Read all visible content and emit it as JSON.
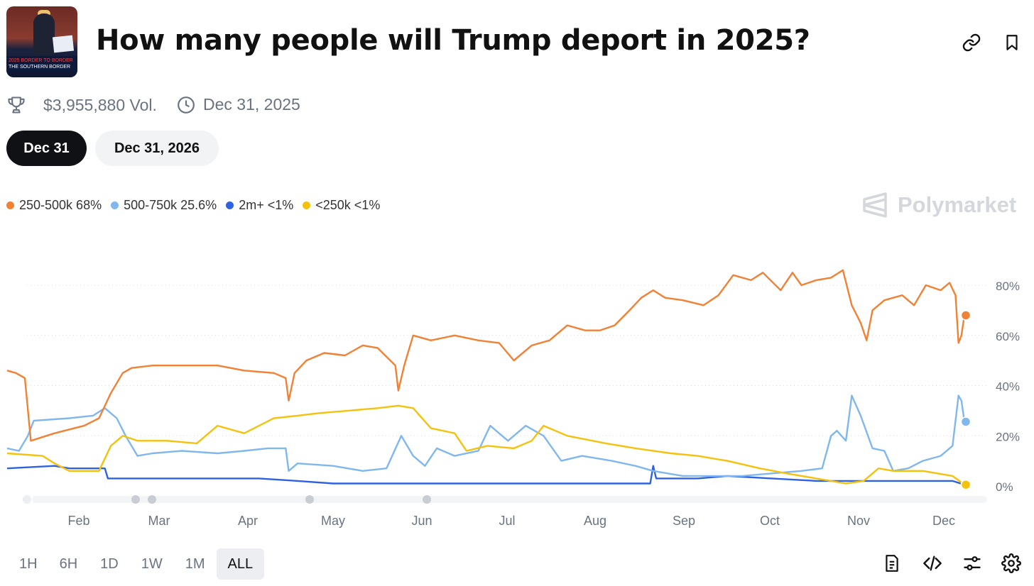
{
  "header": {
    "title": "How many people will Trump deport in 2025?",
    "thumbnail_caption_top": "2025 BORDER TO BORDER",
    "thumbnail_caption_bottom": "THE SOUTHERN BORDER"
  },
  "meta": {
    "volume": "$3,955,880 Vol.",
    "end_date": "Dec 31, 2025",
    "trophy_icon": "trophy-icon",
    "clock_icon": "clock-icon"
  },
  "date_tabs": [
    {
      "label": "Dec 31",
      "active": true
    },
    {
      "label": "Dec 31, 2026",
      "active": false
    }
  ],
  "legend": [
    {
      "label": "250-500k 68%",
      "color": "#f08135"
    },
    {
      "label": "500-750k 25.6%",
      "color": "#7fb7ee"
    },
    {
      "label": "2m+ <1%",
      "color": "#2f62e0"
    },
    {
      "label": "<250k <1%",
      "color": "#f4c20d"
    }
  ],
  "brand": "Polymarket",
  "time_ranges": [
    {
      "label": "1H",
      "active": false
    },
    {
      "label": "6H",
      "active": false
    },
    {
      "label": "1D",
      "active": false
    },
    {
      "label": "1W",
      "active": false
    },
    {
      "label": "1M",
      "active": false
    },
    {
      "label": "ALL",
      "active": true
    }
  ],
  "chart_data": {
    "type": "line",
    "x_labels": [
      "Feb",
      "Mar",
      "Apr",
      "May",
      "Jun",
      "Jul",
      "Aug",
      "Sep",
      "Oct",
      "Nov",
      "Dec"
    ],
    "y_ticks": [
      "0%",
      "20%",
      "40%",
      "60%",
      "80%"
    ],
    "ylim": [
      0,
      100
    ],
    "grid": true,
    "series": [
      {
        "name": "250-500k",
        "color": "#f08135",
        "current": 68,
        "points": [
          [
            "2025-01-20",
            46
          ],
          [
            "2025-01-23",
            45
          ],
          [
            "2025-01-26",
            43
          ],
          [
            "2025-01-28",
            18
          ],
          [
            "2025-02-05",
            21
          ],
          [
            "2025-02-15",
            24
          ],
          [
            "2025-02-20",
            27
          ],
          [
            "2025-02-24",
            37
          ],
          [
            "2025-02-28",
            45
          ],
          [
            "2025-03-03",
            47
          ],
          [
            "2025-03-10",
            48
          ],
          [
            "2025-03-20",
            48
          ],
          [
            "2025-04-01",
            48
          ],
          [
            "2025-04-10",
            46
          ],
          [
            "2025-04-20",
            45
          ],
          [
            "2025-04-24",
            43
          ],
          [
            "2025-04-25",
            34
          ],
          [
            "2025-04-27",
            45
          ],
          [
            "2025-05-01",
            50
          ],
          [
            "2025-05-07",
            53
          ],
          [
            "2025-05-14",
            52
          ],
          [
            "2025-05-20",
            56
          ],
          [
            "2025-05-25",
            55
          ],
          [
            "2025-05-31",
            48
          ],
          [
            "2025-06-01",
            38
          ],
          [
            "2025-06-03",
            48
          ],
          [
            "2025-06-06",
            60
          ],
          [
            "2025-06-12",
            58
          ],
          [
            "2025-06-20",
            60
          ],
          [
            "2025-06-28",
            58
          ],
          [
            "2025-07-05",
            57
          ],
          [
            "2025-07-10",
            50
          ],
          [
            "2025-07-16",
            56
          ],
          [
            "2025-07-22",
            58
          ],
          [
            "2025-07-28",
            64
          ],
          [
            "2025-08-03",
            62
          ],
          [
            "2025-08-08",
            62
          ],
          [
            "2025-08-13",
            64
          ],
          [
            "2025-08-18",
            70
          ],
          [
            "2025-08-22",
            75
          ],
          [
            "2025-08-26",
            78
          ],
          [
            "2025-08-30",
            75
          ],
          [
            "2025-09-05",
            74
          ],
          [
            "2025-09-12",
            72
          ],
          [
            "2025-09-17",
            76
          ],
          [
            "2025-09-22",
            84
          ],
          [
            "2025-09-28",
            82
          ],
          [
            "2025-10-02",
            85
          ],
          [
            "2025-10-08",
            78
          ],
          [
            "2025-10-12",
            85
          ],
          [
            "2025-10-15",
            80
          ],
          [
            "2025-10-20",
            82
          ],
          [
            "2025-10-25",
            83
          ],
          [
            "2025-10-29",
            86
          ],
          [
            "2025-11-01",
            72
          ],
          [
            "2025-11-04",
            65
          ],
          [
            "2025-11-06",
            58
          ],
          [
            "2025-11-08",
            70
          ],
          [
            "2025-11-12",
            74
          ],
          [
            "2025-11-18",
            76
          ],
          [
            "2025-11-22",
            72
          ],
          [
            "2025-11-26",
            80
          ],
          [
            "2025-12-01",
            78
          ],
          [
            "2025-12-04",
            81
          ],
          [
            "2025-12-06",
            76
          ],
          [
            "2025-12-07",
            57
          ],
          [
            "2025-12-08",
            60
          ],
          [
            "2025-12-09",
            68
          ]
        ]
      },
      {
        "name": "500-750k",
        "color": "#7fb7ee",
        "current": 25.6,
        "points": [
          [
            "2025-01-20",
            15
          ],
          [
            "2025-01-24",
            14
          ],
          [
            "2025-01-27",
            20
          ],
          [
            "2025-01-29",
            26
          ],
          [
            "2025-02-10",
            27
          ],
          [
            "2025-02-18",
            28
          ],
          [
            "2025-02-22",
            31
          ],
          [
            "2025-02-26",
            27
          ],
          [
            "2025-03-01",
            20
          ],
          [
            "2025-03-05",
            12
          ],
          [
            "2025-03-10",
            13
          ],
          [
            "2025-03-20",
            14
          ],
          [
            "2025-04-01",
            13
          ],
          [
            "2025-04-10",
            14
          ],
          [
            "2025-04-18",
            15
          ],
          [
            "2025-04-24",
            15
          ],
          [
            "2025-04-25",
            6
          ],
          [
            "2025-04-28",
            9
          ],
          [
            "2025-05-10",
            8
          ],
          [
            "2025-05-20",
            6
          ],
          [
            "2025-05-28",
            7
          ],
          [
            "2025-06-02",
            20
          ],
          [
            "2025-06-06",
            12
          ],
          [
            "2025-06-10",
            8
          ],
          [
            "2025-06-14",
            15
          ],
          [
            "2025-06-20",
            12
          ],
          [
            "2025-06-28",
            14
          ],
          [
            "2025-07-02",
            24
          ],
          [
            "2025-07-08",
            18
          ],
          [
            "2025-07-14",
            24
          ],
          [
            "2025-07-20",
            20
          ],
          [
            "2025-07-26",
            10
          ],
          [
            "2025-08-02",
            12
          ],
          [
            "2025-08-12",
            10
          ],
          [
            "2025-08-20",
            8
          ],
          [
            "2025-08-26",
            6
          ],
          [
            "2025-09-05",
            4
          ],
          [
            "2025-09-15",
            4
          ],
          [
            "2025-09-25",
            4
          ],
          [
            "2025-10-05",
            5
          ],
          [
            "2025-10-15",
            6
          ],
          [
            "2025-10-22",
            7
          ],
          [
            "2025-10-25",
            20
          ],
          [
            "2025-10-27",
            22
          ],
          [
            "2025-10-30",
            18
          ],
          [
            "2025-11-01",
            36
          ],
          [
            "2025-11-04",
            28
          ],
          [
            "2025-11-08",
            15
          ],
          [
            "2025-11-12",
            14
          ],
          [
            "2025-11-15",
            6
          ],
          [
            "2025-11-20",
            7
          ],
          [
            "2025-11-25",
            10
          ],
          [
            "2025-12-01",
            12
          ],
          [
            "2025-12-05",
            16
          ],
          [
            "2025-12-07",
            36
          ],
          [
            "2025-12-08",
            34
          ],
          [
            "2025-12-09",
            25.6
          ]
        ]
      },
      {
        "name": "2m+",
        "color": "#2f62e0",
        "current": 0.5,
        "points": [
          [
            "2025-01-20",
            7
          ],
          [
            "2025-02-05",
            8
          ],
          [
            "2025-02-10",
            7
          ],
          [
            "2025-02-22",
            7
          ],
          [
            "2025-02-23",
            3
          ],
          [
            "2025-03-15",
            3
          ],
          [
            "2025-04-15",
            3
          ],
          [
            "2025-04-28",
            2
          ],
          [
            "2025-05-10",
            1
          ],
          [
            "2025-06-01",
            1
          ],
          [
            "2025-07-01",
            1
          ],
          [
            "2025-08-01",
            1
          ],
          [
            "2025-08-25",
            1
          ],
          [
            "2025-08-26",
            8
          ],
          [
            "2025-08-27",
            3
          ],
          [
            "2025-09-10",
            3
          ],
          [
            "2025-09-20",
            4
          ],
          [
            "2025-10-05",
            3
          ],
          [
            "2025-10-20",
            2
          ],
          [
            "2025-11-10",
            2
          ],
          [
            "2025-12-05",
            2
          ],
          [
            "2025-12-09",
            0.5
          ]
        ]
      },
      {
        "name": "<250k",
        "color": "#f4c20d",
        "current": 0.5,
        "points": [
          [
            "2025-01-20",
            13
          ],
          [
            "2025-02-01",
            12
          ],
          [
            "2025-02-05",
            9
          ],
          [
            "2025-02-10",
            6
          ],
          [
            "2025-02-20",
            6
          ],
          [
            "2025-02-24",
            16
          ],
          [
            "2025-02-28",
            20
          ],
          [
            "2025-03-05",
            18
          ],
          [
            "2025-03-15",
            18
          ],
          [
            "2025-03-25",
            17
          ],
          [
            "2025-04-01",
            24
          ],
          [
            "2025-04-10",
            21
          ],
          [
            "2025-04-20",
            27
          ],
          [
            "2025-04-28",
            28
          ],
          [
            "2025-05-05",
            29
          ],
          [
            "2025-05-15",
            30
          ],
          [
            "2025-05-25",
            31
          ],
          [
            "2025-06-01",
            32
          ],
          [
            "2025-06-06",
            31
          ],
          [
            "2025-06-12",
            23
          ],
          [
            "2025-06-20",
            21
          ],
          [
            "2025-06-24",
            14
          ],
          [
            "2025-07-01",
            16
          ],
          [
            "2025-07-10",
            15
          ],
          [
            "2025-07-16",
            18
          ],
          [
            "2025-07-20",
            24
          ],
          [
            "2025-07-28",
            20
          ],
          [
            "2025-08-10",
            17
          ],
          [
            "2025-08-20",
            15
          ],
          [
            "2025-09-01",
            13
          ],
          [
            "2025-09-10",
            12
          ],
          [
            "2025-09-20",
            10
          ],
          [
            "2025-10-01",
            7
          ],
          [
            "2025-10-10",
            5
          ],
          [
            "2025-10-20",
            3
          ],
          [
            "2025-10-30",
            1
          ],
          [
            "2025-11-05",
            2
          ],
          [
            "2025-11-10",
            7
          ],
          [
            "2025-11-15",
            6
          ],
          [
            "2025-11-25",
            6
          ],
          [
            "2025-12-05",
            4
          ],
          [
            "2025-12-09",
            0.5
          ]
        ]
      }
    ]
  },
  "icons": {
    "link": "link-icon",
    "bookmark": "bookmark-icon",
    "document": "document-icon",
    "embed": "code-icon",
    "sliders": "sliders-icon",
    "settings": "gear-icon"
  }
}
